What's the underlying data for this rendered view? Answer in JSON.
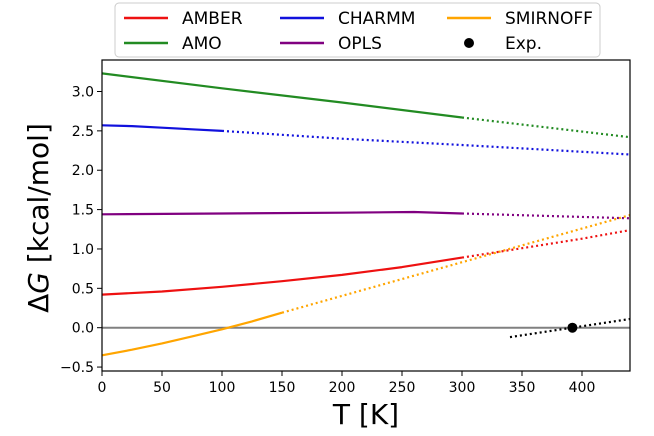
{
  "chart_data": {
    "type": "line",
    "xlabel": "T [K]",
    "ylabel_prefix": "Δ",
    "ylabel_var": "G",
    "ylabel_suffix": " [kcal/mol]",
    "xlim": [
      0,
      440
    ],
    "ylim": [
      -0.55,
      3.4
    ],
    "xticks": [
      0,
      50,
      100,
      150,
      200,
      250,
      300,
      350,
      400
    ],
    "yticks": [
      -0.5,
      0.0,
      0.5,
      1.0,
      1.5,
      2.0,
      2.5,
      3.0
    ],
    "zero_line": {
      "y": 0,
      "color": "#808080"
    },
    "legend_position": "top-center, outside plot",
    "series": [
      {
        "name": "AMBER",
        "color": "#ee1111",
        "solid": {
          "x": [
            0,
            50,
            100,
            150,
            200,
            250,
            300
          ],
          "y": [
            0.42,
            0.46,
            0.52,
            0.59,
            0.67,
            0.77,
            0.89
          ]
        },
        "dotted": {
          "x": [
            300,
            350,
            400,
            440
          ],
          "y": [
            0.89,
            1.01,
            1.13,
            1.24
          ]
        }
      },
      {
        "name": "AMO",
        "color": "#228b22",
        "solid": {
          "x": [
            0,
            100,
            200,
            300
          ],
          "y": [
            3.23,
            3.04,
            2.86,
            2.67
          ]
        },
        "dotted": {
          "x": [
            300,
            440
          ],
          "y": [
            2.67,
            2.42
          ]
        }
      },
      {
        "name": "CHARMM",
        "color": "#1111dd",
        "solid": {
          "x": [
            0,
            25,
            50,
            75,
            100
          ],
          "y": [
            2.57,
            2.56,
            2.54,
            2.52,
            2.5
          ]
        },
        "dotted": {
          "x": [
            100,
            200,
            300,
            440
          ],
          "y": [
            2.5,
            2.4,
            2.32,
            2.2
          ]
        }
      },
      {
        "name": "OPLS",
        "color": "#800080",
        "solid": {
          "x": [
            0,
            100,
            200,
            260,
            300
          ],
          "y": [
            1.44,
            1.45,
            1.46,
            1.47,
            1.45
          ]
        },
        "dotted": {
          "x": [
            300,
            440
          ],
          "y": [
            1.45,
            1.39
          ]
        }
      },
      {
        "name": "SMIRNOFF",
        "color": "#ffa500",
        "solid": {
          "x": [
            0,
            25,
            50,
            75,
            100,
            125,
            150
          ],
          "y": [
            -0.35,
            -0.28,
            -0.2,
            -0.11,
            -0.02,
            0.08,
            0.19
          ]
        },
        "dotted": {
          "x": [
            150,
            440
          ],
          "y": [
            0.19,
            1.43
          ]
        }
      }
    ],
    "experiment": {
      "name": "Exp.",
      "point": {
        "x": 392,
        "y": 0.0
      },
      "trend": {
        "x": [
          340,
          440
        ],
        "y": [
          -0.12,
          0.11
        ]
      },
      "color": "#000000"
    }
  }
}
